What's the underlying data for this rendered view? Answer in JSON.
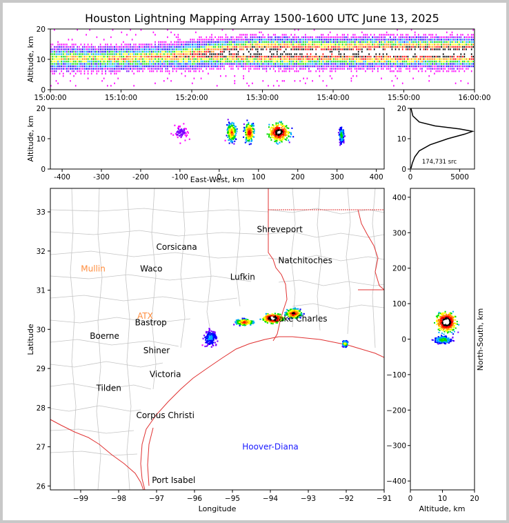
{
  "chart_data": [
    {
      "id": "time-height",
      "type": "heatmap",
      "title": "Houston Lightning Mapping Array 1500-1600 UTC June 13, 2025",
      "ylabel": "Altitude, km",
      "xlabel": "",
      "x_ticks": [
        "15:00:00",
        "15:10:00",
        "15:20:00",
        "15:30:00",
        "15:40:00",
        "15:50:00",
        "16:00:00"
      ],
      "xlim_minutes": [
        0,
        60
      ],
      "ylim": [
        0,
        20
      ],
      "y_ticks": [
        0,
        10,
        20
      ],
      "density_by_time": [
        {
          "t": 0,
          "core": 10,
          "depth": 8,
          "strength": 0.55
        },
        {
          "t": 5,
          "core": 10,
          "depth": 8,
          "strength": 0.55
        },
        {
          "t": 10,
          "core": 10,
          "depth": 8,
          "strength": 0.6
        },
        {
          "t": 15,
          "core": 10.5,
          "depth": 8,
          "strength": 0.6
        },
        {
          "t": 20,
          "core": 11,
          "depth": 9,
          "strength": 0.7
        },
        {
          "t": 25,
          "core": 12,
          "depth": 9,
          "strength": 0.9
        },
        {
          "t": 30,
          "core": 12,
          "depth": 10,
          "strength": 0.95
        },
        {
          "t": 35,
          "core": 12,
          "depth": 10,
          "strength": 0.95
        },
        {
          "t": 40,
          "core": 12,
          "depth": 10,
          "strength": 0.9
        },
        {
          "t": 45,
          "core": 12,
          "depth": 10,
          "strength": 0.95
        },
        {
          "t": 50,
          "core": 12,
          "depth": 10,
          "strength": 1.0
        },
        {
          "t": 55,
          "core": 12,
          "depth": 10,
          "strength": 1.0
        },
        {
          "t": 60,
          "core": 12,
          "depth": 10,
          "strength": 1.0
        }
      ]
    },
    {
      "id": "ew-height",
      "type": "heatmap",
      "xlabel": "East-West, km",
      "ylabel": "Altitude, km",
      "xlim": [
        -430,
        420
      ],
      "ylim": [
        0,
        20
      ],
      "x_ticks": [
        -400,
        -300,
        -200,
        -100,
        0,
        100,
        200,
        300,
        400
      ],
      "y_ticks": [
        0,
        10,
        20
      ],
      "cells": [
        {
          "x": -100,
          "w": 60,
          "core": 12,
          "depth": 8,
          "strength": 0.15
        },
        {
          "x": 30,
          "w": 40,
          "core": 12,
          "depth": 9,
          "strength": 0.75
        },
        {
          "x": 75,
          "w": 40,
          "core": 12,
          "depth": 9,
          "strength": 0.85
        },
        {
          "x": 150,
          "w": 90,
          "core": 12,
          "depth": 9,
          "strength": 1.0
        },
        {
          "x": 310,
          "w": 22,
          "core": 11,
          "depth": 8,
          "strength": 0.5
        }
      ]
    },
    {
      "id": "altitude-histogram",
      "type": "line",
      "xlim": [
        0,
        6500
      ],
      "ylim": [
        0,
        20
      ],
      "x_ticks": [
        0,
        5000
      ],
      "y_ticks": [
        0,
        10,
        20
      ],
      "annotation": "174,731 src",
      "points": [
        {
          "count": 60,
          "alt": 0.2
        },
        {
          "count": 200,
          "alt": 2
        },
        {
          "count": 450,
          "alt": 4
        },
        {
          "count": 900,
          "alt": 6
        },
        {
          "count": 2000,
          "alt": 8
        },
        {
          "count": 3800,
          "alt": 10
        },
        {
          "count": 5500,
          "alt": 11.5
        },
        {
          "count": 6300,
          "alt": 12.4
        },
        {
          "count": 5000,
          "alt": 13.2
        },
        {
          "count": 2500,
          "alt": 14.2
        },
        {
          "count": 900,
          "alt": 15.5
        },
        {
          "count": 250,
          "alt": 17.5
        },
        {
          "count": 60,
          "alt": 20
        }
      ]
    },
    {
      "id": "plan-view",
      "type": "scatter",
      "xlabel": "Longitude",
      "ylabel": "Latitude",
      "xlim": [
        -99.8,
        -91
      ],
      "ylim": [
        25.9,
        33.6
      ],
      "x_ticks": [
        -99,
        -98,
        -97,
        -96,
        -95,
        -94,
        -93,
        -92,
        -91
      ],
      "y_ticks": [
        26,
        27,
        28,
        29,
        30,
        31,
        32,
        33
      ],
      "places": [
        {
          "name": "Shreveport",
          "lon": -93.75,
          "lat": 32.55,
          "color": "#000000"
        },
        {
          "name": "Corsicana",
          "lon": -96.47,
          "lat": 32.1,
          "color": "#000000"
        },
        {
          "name": "Natchitoches",
          "lon": -93.08,
          "lat": 31.76,
          "color": "#000000"
        },
        {
          "name": "Mullin",
          "lon": -98.67,
          "lat": 31.55,
          "color": "#ff8c3c"
        },
        {
          "name": "Waco",
          "lon": -97.14,
          "lat": 31.55,
          "color": "#000000"
        },
        {
          "name": "Lufkin",
          "lon": -94.73,
          "lat": 31.34,
          "color": "#000000"
        },
        {
          "name": "ATX",
          "lon": -97.3,
          "lat": 30.34,
          "color": "#ff8c3c"
        },
        {
          "name": "Bastrop",
          "lon": -97.15,
          "lat": 30.17,
          "color": "#000000"
        },
        {
          "name": "Lake Charles",
          "lon": -93.2,
          "lat": 30.27,
          "color": "#000000"
        },
        {
          "name": "Boerne",
          "lon": -98.37,
          "lat": 29.83,
          "color": "#000000"
        },
        {
          "name": "Shiner",
          "lon": -97.0,
          "lat": 29.46,
          "color": "#000000"
        },
        {
          "name": "Victoria",
          "lon": -96.77,
          "lat": 28.85,
          "color": "#000000"
        },
        {
          "name": "Tilden",
          "lon": -98.26,
          "lat": 28.5,
          "color": "#000000"
        },
        {
          "name": "Corpus Christi",
          "lon": -96.77,
          "lat": 27.8,
          "color": "#000000"
        },
        {
          "name": "Hoover-Diana",
          "lon": -94.0,
          "lat": 27.0,
          "color": "#1a1aff"
        },
        {
          "name": "Port Isabel",
          "lon": -96.55,
          "lat": 26.15,
          "color": "#000000"
        }
      ],
      "clusters": [
        {
          "lon": -95.6,
          "lat": 29.8,
          "rx": 0.28,
          "ry": 0.3,
          "strength": 0.35
        },
        {
          "lon": -94.7,
          "lat": 30.2,
          "rx": 0.35,
          "ry": 0.12,
          "strength": 0.75
        },
        {
          "lon": -93.95,
          "lat": 30.3,
          "rx": 0.4,
          "ry": 0.18,
          "strength": 1.0
        },
        {
          "lon": -93.4,
          "lat": 30.42,
          "rx": 0.3,
          "ry": 0.18,
          "strength": 0.85
        },
        {
          "lon": -92.05,
          "lat": 29.65,
          "rx": 0.1,
          "ry": 0.12,
          "strength": 0.6
        }
      ]
    },
    {
      "id": "height-ns",
      "type": "heatmap",
      "xlabel": "Altitude, km",
      "ylabel": "North-South, km",
      "xlim": [
        0,
        20
      ],
      "ylim": [
        -425,
        425
      ],
      "x_ticks": [
        0,
        10,
        20
      ],
      "y_ticks": [
        -400,
        -300,
        -200,
        -100,
        0,
        100,
        200,
        300,
        400
      ],
      "cells": [
        {
          "y": 50,
          "h": 70,
          "core": 11,
          "depth": 9,
          "strength": 1.0
        },
        {
          "y": 0,
          "h": 25,
          "core": 10,
          "depth": 8,
          "strength": 0.5
        }
      ]
    }
  ]
}
